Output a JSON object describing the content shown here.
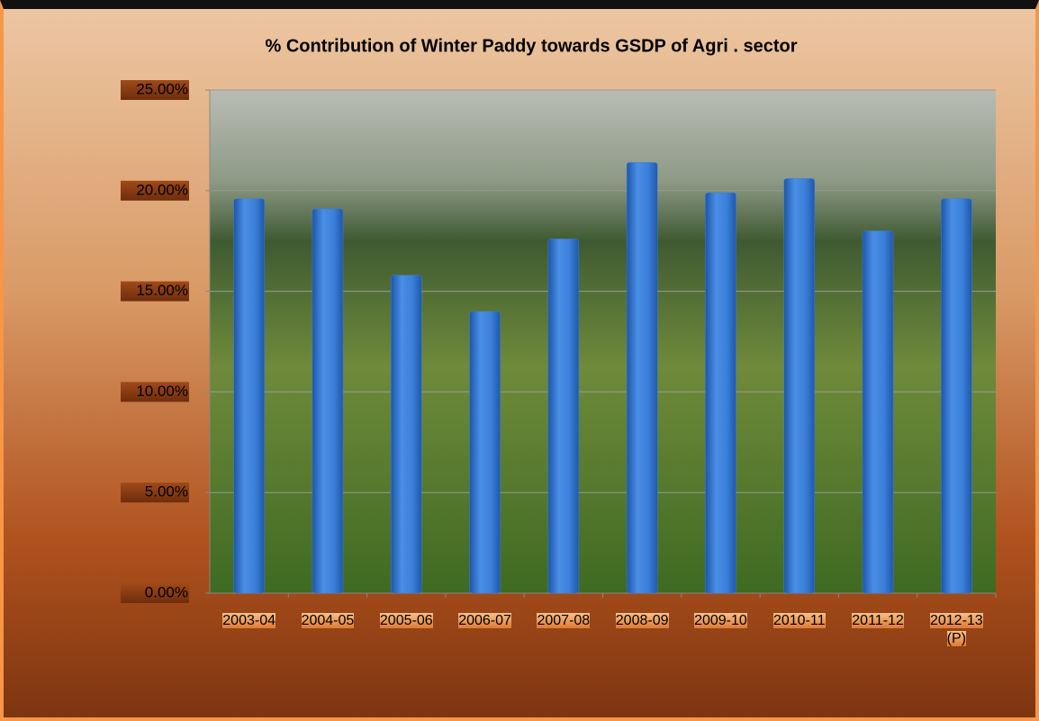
{
  "chart_data": {
    "type": "bar",
    "title": "% Contribution of Winter Paddy towards GSDP of Agri . sector",
    "categories": [
      "2003-04",
      "2004-05",
      "2005-06",
      "2006-07",
      "2007-08",
      "2008-09",
      "2009-10",
      "2010-11",
      "2011-12",
      "2012-13 (P)"
    ],
    "values": [
      19.6,
      19.1,
      15.8,
      14.0,
      17.6,
      21.4,
      19.9,
      20.6,
      18.0,
      19.6
    ],
    "color": "#3b7fd9",
    "ylim": [
      0,
      25
    ],
    "yticks": [
      {
        "value": 0,
        "label": "0.00%"
      },
      {
        "value": 5,
        "label": "5.00%"
      },
      {
        "value": 10,
        "label": "10.00%"
      },
      {
        "value": 15,
        "label": "15.00%"
      },
      {
        "value": 20,
        "label": "20.00%"
      },
      {
        "value": 25,
        "label": "25.00%"
      }
    ],
    "grid": true
  }
}
